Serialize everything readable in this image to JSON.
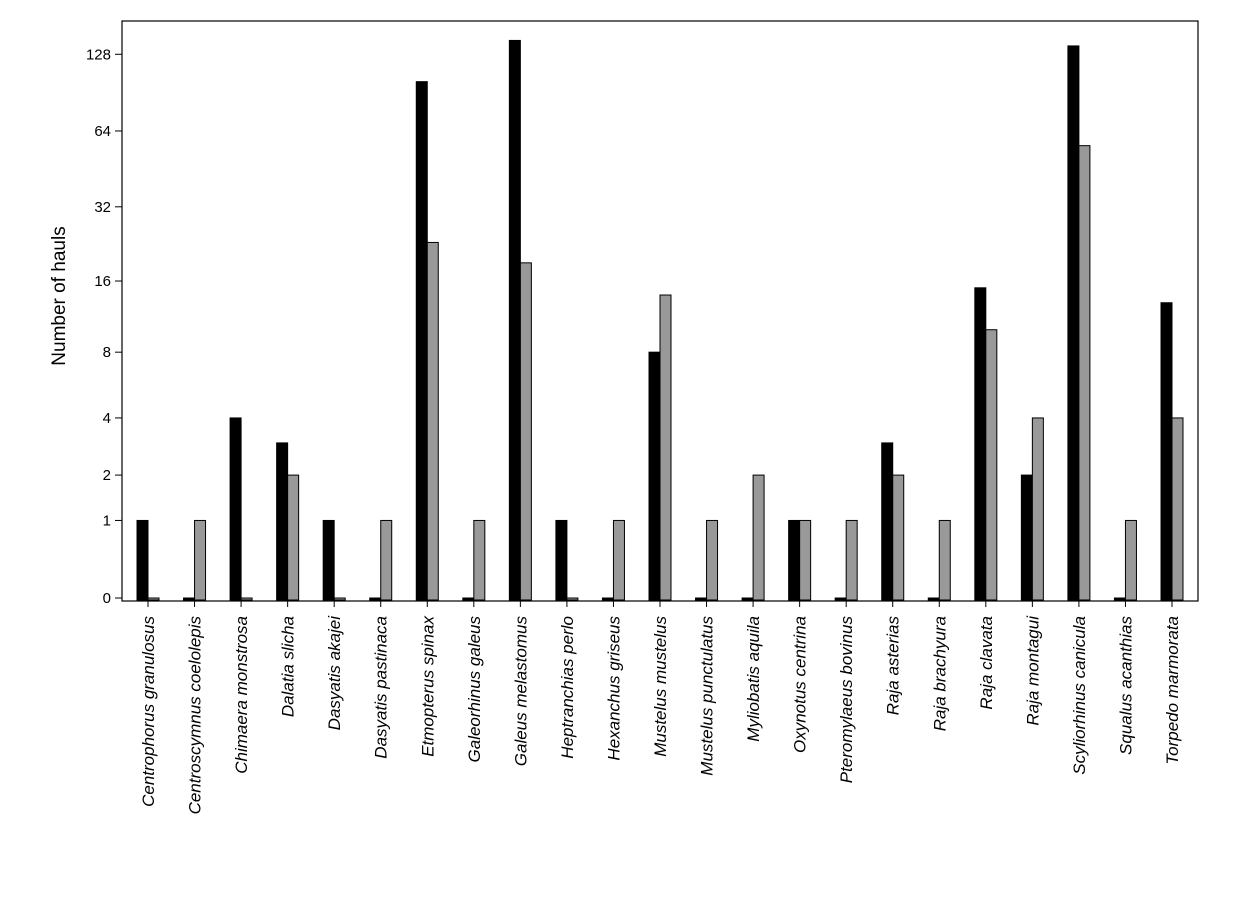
{
  "colors": {
    "series_1": "#000000",
    "series_2": "#999999",
    "axis": "#000000",
    "background": "#ffffff"
  },
  "chart_data": {
    "type": "bar",
    "xlabel": "",
    "ylabel": "Number of hauls",
    "yscale": "log2 (offset, 0 shown at baseline)",
    "yticks": [
      0,
      1,
      2,
      4,
      8,
      16,
      32,
      64,
      128
    ],
    "ylim": [
      0,
      150
    ],
    "grid": false,
    "legend": "none",
    "categories": [
      "Centrophorus granulosus",
      "Centroscymnus coelolepis",
      "Chimaera monstrosa",
      "Dalatia slicha",
      "Dasyatis akajei",
      "Dasyatis pastinaca",
      "Etmopterus spinax",
      "Galeorhinus galeus",
      "Galeus melastomus",
      "Heptranchias perlo",
      "Hexanchus griseus",
      "Mustelus mustelus",
      "Mustelus punctulatus",
      "Myliobatis aquila",
      "Oxynotus centrina",
      "Pteromylaeus bovinus",
      "Raja asterias",
      "Raja brachyura",
      "Raja clavata",
      "Raja montagui",
      "Scyliorhinus canicula",
      "Squalus acanthias",
      "Torpedo marmorata"
    ],
    "series": [
      {
        "values": [
          1,
          0,
          4,
          3,
          1,
          0,
          100,
          0,
          145,
          1,
          0,
          8,
          0,
          0,
          1,
          0,
          3,
          0,
          15,
          2,
          138,
          0,
          13
        ]
      },
      {
        "values": [
          0,
          1,
          0,
          2,
          0,
          1,
          23,
          1,
          19,
          0,
          1,
          14,
          1,
          2,
          1,
          1,
          2,
          1,
          10,
          4,
          56,
          1,
          4
        ]
      }
    ]
  }
}
